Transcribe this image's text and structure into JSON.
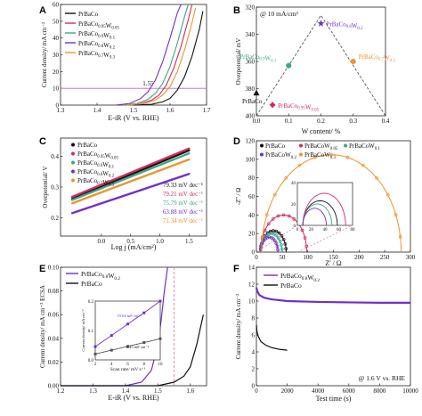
{
  "colors": {
    "PrBaCo": "#111111",
    "W005": "#d62a5a",
    "W01": "#3aa88a",
    "W02": "#7030c8",
    "W03": "#f0922e",
    "ref": "#c060c0",
    "dashed": "#e070a0",
    "trend": "#555555"
  },
  "chart_data": [
    {
      "panel": "A",
      "type": "line",
      "xlabel": "E-iR (V vs. RHE)",
      "ylabel": "Current density/ mA cm⁻²",
      "xlim": [
        1.3,
        1.7
      ],
      "ylim": [
        0,
        60
      ],
      "xticks": [
        "1.3",
        "1.4",
        "1.5",
        "1.6",
        "1.7"
      ],
      "yticks": [
        "0",
        "10",
        "20",
        "30",
        "40",
        "50",
        "60"
      ],
      "reference_line": {
        "y": 10,
        "label": "1.55"
      },
      "legend": [
        "PrBaCo",
        "PrBaCo0.95W0.05",
        "PrBaCo0.9W0.1",
        "PrBaCo0.8W0.2",
        "PrBaCo0.7W0.3"
      ],
      "series": [
        {
          "name": "PrBaCo",
          "x": [
            1.5,
            1.55,
            1.58,
            1.6,
            1.62,
            1.64,
            1.66,
            1.68,
            1.69
          ],
          "y": [
            0,
            0.5,
            2,
            4,
            9,
            17,
            29,
            45,
            56
          ]
        },
        {
          "name": "PrBaCo0.95W0.05",
          "x": [
            1.48,
            1.52,
            1.55,
            1.57,
            1.59,
            1.61,
            1.63,
            1.65,
            1.66
          ],
          "y": [
            0,
            1,
            3,
            6,
            12,
            22,
            35,
            51,
            60
          ]
        },
        {
          "name": "PrBaCo0.9W0.1",
          "x": [
            1.47,
            1.51,
            1.54,
            1.56,
            1.58,
            1.6,
            1.62,
            1.64,
            1.65
          ],
          "y": [
            0,
            1,
            3.5,
            7,
            13,
            23,
            37,
            53,
            60
          ]
        },
        {
          "name": "PrBaCo0.8W0.2",
          "x": [
            1.45,
            1.49,
            1.52,
            1.54,
            1.56,
            1.58,
            1.6,
            1.62,
            1.63
          ],
          "y": [
            0,
            1,
            4,
            8,
            15,
            26,
            40,
            55,
            60
          ]
        },
        {
          "name": "PrBaCo0.7W0.3",
          "x": [
            1.48,
            1.53,
            1.56,
            1.58,
            1.6,
            1.62,
            1.64,
            1.66,
            1.67
          ],
          "y": [
            0,
            1,
            3,
            6,
            11,
            20,
            33,
            49,
            58
          ]
        }
      ]
    },
    {
      "panel": "B",
      "type": "scatter",
      "title": "@ 10 mA/cm²",
      "xlabel": "W content/ %",
      "ylabel": "Overpotential/ mV",
      "xlim": [
        0.0,
        0.4
      ],
      "ylim": [
        320,
        400
      ],
      "ylim_direction": "inverted",
      "xticks": [
        "0.0",
        "0.1",
        "0.2",
        "0.3",
        "0.4"
      ],
      "yticks": [
        "320",
        "340",
        "360",
        "380",
        "400"
      ],
      "points": [
        {
          "label": "PrBaCo",
          "x": 0.0,
          "y": 383,
          "marker": "triangle"
        },
        {
          "label": "PrBaCo0.95W0.05",
          "x": 0.05,
          "y": 392,
          "marker": "diamond"
        },
        {
          "label": "PrBaCo0.9W0.1",
          "x": 0.1,
          "y": 363,
          "marker": "circle"
        },
        {
          "label": "PrBaCo0.8W0.2",
          "x": 0.2,
          "y": 332,
          "marker": "star"
        },
        {
          "label": "PrBaCo0.7W0.3",
          "x": 0.3,
          "y": 360,
          "marker": "circle"
        }
      ],
      "trend": {
        "x": [
          0.0,
          0.2,
          0.4
        ],
        "y": [
          400,
          326,
          400
        ]
      }
    },
    {
      "panel": "C",
      "type": "line",
      "xlabel": "Log j (mA/cm²)",
      "ylabel": "Overpotential/ V",
      "xlim": [
        -0.7,
        1.8
      ],
      "ylim": [
        0.14,
        0.46
      ],
      "xticks": [
        "0.0",
        "0.5",
        "1.0",
        "1.5"
      ],
      "yticks": [
        "0.2",
        "0.3",
        "0.4"
      ],
      "legend": [
        "PrBaCo",
        "PrBaCo0.95W0.05",
        "PrBaCo0.9W0.1",
        "PrBaCo0.8W0.2",
        "PrBaCo0.7W0.3"
      ],
      "annotations": [
        "79.33 mV dec⁻¹",
        "79.21 mV dec⁻¹",
        "75.79 mV dec⁻¹",
        "63.88 mV dec⁻¹",
        "71.34 mV dec⁻¹"
      ],
      "series": [
        {
          "name": "PrBaCo",
          "x": [
            -0.5,
            1.5
          ],
          "y": [
            0.262,
            0.42
          ]
        },
        {
          "name": "PrBaCo0.95W0.05",
          "x": [
            -0.5,
            1.5
          ],
          "y": [
            0.268,
            0.426
          ]
        },
        {
          "name": "PrBaCo0.9W0.1",
          "x": [
            -0.5,
            1.5
          ],
          "y": [
            0.258,
            0.41
          ]
        },
        {
          "name": "PrBaCo0.8W0.2",
          "x": [
            -0.5,
            1.5
          ],
          "y": [
            0.215,
            0.343
          ]
        },
        {
          "name": "PrBaCo0.7W0.3",
          "x": [
            -0.5,
            1.5
          ],
          "y": [
            0.247,
            0.39
          ]
        }
      ]
    },
    {
      "panel": "D",
      "type": "line",
      "xlabel": "Z' / Ω",
      "ylabel": "-Z'' / Ω",
      "xlim": [
        0,
        300
      ],
      "ylim": [
        0,
        120
      ],
      "xticks": [
        "0",
        "50",
        "100",
        "150",
        "200",
        "250",
        "300"
      ],
      "yticks": [
        "0",
        "20",
        "40",
        "60",
        "80",
        "100",
        "120"
      ],
      "legend": [
        "PrBaCo",
        "PrBaCoW0.05",
        "PrBaCoW0.1",
        "PrBaCoW0.2",
        "PrBaCoW0.3"
      ],
      "arcs": [
        {
          "name": "PrBaCo",
          "x0": 8,
          "x1": 58,
          "h": 23
        },
        {
          "name": "PrBaCoW0.05",
          "x0": 8,
          "x1": 98,
          "h": 40
        },
        {
          "name": "PrBaCoW0.1",
          "x0": 8,
          "x1": 50,
          "h": 20
        },
        {
          "name": "PrBaCoW0.2",
          "x0": 8,
          "x1": 42,
          "h": 16
        },
        {
          "name": "PrBaCoW0.3",
          "x0": 10,
          "x1": 282,
          "h": 105
        }
      ],
      "inset": {
        "xlim": [
          0,
          80
        ],
        "ylim": [
          0,
          40
        ],
        "xticks": [
          "0",
          "20",
          "40",
          "60",
          "80"
        ],
        "yticks": [
          "0",
          "20",
          "40"
        ],
        "arcs": [
          {
            "name": "PrBaCo",
            "x0": 8,
            "x1": 58,
            "h": 23
          },
          {
            "name": "PrBaCoW0.05",
            "x0": 8,
            "x1": 70,
            "h": 30
          },
          {
            "name": "PrBaCoW0.1",
            "x0": 8,
            "x1": 50,
            "h": 20
          },
          {
            "name": "PrBaCoW0.2",
            "x0": 8,
            "x1": 42,
            "h": 16
          }
        ]
      }
    },
    {
      "panel": "E",
      "type": "line",
      "xlabel": "E-iR (V vs. RHE)",
      "ylabel": "Current density/ mA cm⁻² ECSA",
      "xlim": [
        1.2,
        1.65
      ],
      "ylim": [
        0,
        0.1
      ],
      "xticks": [
        "1.2",
        "1.3",
        "1.4",
        "1.5",
        "1.6"
      ],
      "yticks": [
        "0.00",
        "0.02",
        "0.04",
        "0.06",
        "0.08",
        "0.10"
      ],
      "reference_line": {
        "x": 1.55
      },
      "legend": [
        "PrBaCo0.8W0.2",
        "PrBaCo"
      ],
      "series": [
        {
          "name": "PrBaCo0.8W0.2",
          "x": [
            1.2,
            1.4,
            1.45,
            1.48,
            1.5,
            1.51,
            1.52,
            1.53
          ],
          "y": [
            0,
            0,
            0.003,
            0.013,
            0.035,
            0.055,
            0.08,
            0.1
          ]
        },
        {
          "name": "PrBaCo",
          "x": [
            1.2,
            1.5,
            1.55,
            1.58,
            1.6,
            1.62,
            1.64
          ],
          "y": [
            0,
            0,
            0.003,
            0.008,
            0.016,
            0.035,
            0.06
          ]
        }
      ],
      "inset": {
        "xlabel": "Scan rate/ mV s⁻¹",
        "ylabel": "Current density/ mA cm⁻²",
        "xlim": [
          2,
          10
        ],
        "ylim": [
          0,
          0.2
        ],
        "xticks": [
          "2",
          "4",
          "6",
          "8",
          "10"
        ],
        "yticks": [
          "0.0",
          "0.1",
          "0.2"
        ],
        "annotations": [
          "19.04 mF cm⁻²",
          "6.43 mF cm⁻²"
        ],
        "series": [
          {
            "name": "PrBaCo0.8W0.2",
            "x": [
              2,
              4,
              6,
              8,
              10
            ],
            "y": [
              0.045,
              0.083,
              0.122,
              0.16,
              0.2
            ]
          },
          {
            "name": "PrBaCo",
            "x": [
              2,
              4,
              6,
              8,
              10
            ],
            "y": [
              0.02,
              0.033,
              0.046,
              0.059,
              0.072
            ]
          }
        ]
      }
    },
    {
      "panel": "F",
      "type": "line",
      "xlabel": "Test time (s)",
      "ylabel": "Current density/ mA cm⁻²",
      "xlim": [
        0,
        10000
      ],
      "ylim": [
        0,
        14
      ],
      "xticks": [
        "0",
        "2000",
        "4000",
        "6000",
        "8000",
        "10000"
      ],
      "yticks": [
        "0",
        "2",
        "4",
        "6",
        "8",
        "10",
        "12",
        "14"
      ],
      "annotation": "@ 1.6 V vs. RHE",
      "legend": [
        "PrBaCo0.8W0.2",
        "PrBaCo"
      ],
      "series": [
        {
          "name": "PrBaCo0.8W0.2",
          "x": [
            0,
            50,
            200,
            500,
            1000,
            2000,
            4000,
            6000,
            8000,
            10000
          ],
          "y": [
            11.6,
            11.2,
            10.7,
            10.4,
            10.2,
            10.0,
            9.9,
            9.85,
            9.8,
            9.8
          ]
        },
        {
          "name": "PrBaCo",
          "x": [
            0,
            30,
            100,
            300,
            600,
            1000,
            1500,
            2000
          ],
          "y": [
            7.2,
            6.5,
            5.9,
            5.2,
            4.8,
            4.5,
            4.3,
            4.2
          ]
        }
      ]
    }
  ]
}
